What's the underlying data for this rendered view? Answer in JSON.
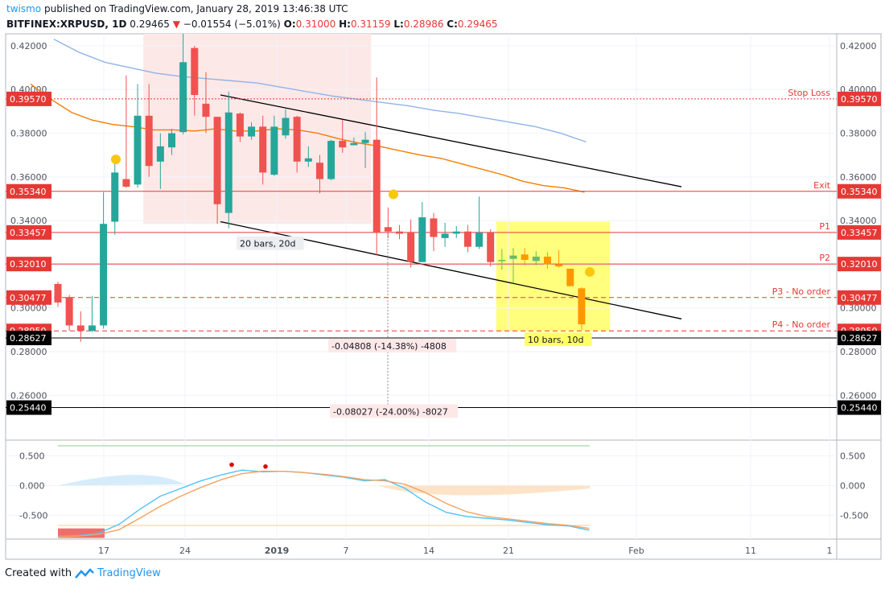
{
  "header": {
    "author": "twismo",
    "published_text": "published on TradingView.com, January 28, 2019 13:46:38 UTC",
    "symbol": "BITFINEX:XRPUSD, 1D",
    "last": "0.29465",
    "change": "−0.01554 (−5.01%)",
    "o_label": "O:",
    "o_value": "0.31000",
    "h_label": "H:",
    "h_value": "0.31159",
    "l_label": "L:",
    "l_value": "0.28986",
    "c_label": "C:",
    "c_value": "0.29465"
  },
  "footer": {
    "created_with": "Created with",
    "brand": "TradingView"
  },
  "colors": {
    "up": "#26a69a",
    "down": "#ef5350",
    "projection_up": "#66bb6a",
    "projection_down": "#ff9800",
    "ma_fast": "#f57c00",
    "ma_slow": "#90b4e6",
    "level_red": "#e53935",
    "level_black": "#000000",
    "box_yellow": "#ffff66",
    "shade_pink": "#fde8e8",
    "marker": "#f9c80e"
  },
  "chart_data": [
    {
      "type": "candlestick",
      "title": "",
      "y_axis": {
        "range": [
          0.2395,
          0.4255
        ],
        "ticks": [
          "0.42000",
          "0.40000",
          "0.38000",
          "0.36000",
          "0.34000",
          "0.32000",
          "0.30000",
          "0.28000",
          "0.26000"
        ]
      },
      "x_axis": {
        "ticks": [
          "17",
          "24",
          "2019",
          "7",
          "14",
          "21",
          "Feb",
          "11",
          "1"
        ]
      },
      "candles": [
        {
          "o": 0.311,
          "h": 0.312,
          "l": 0.3005,
          "c": 0.3025
        },
        {
          "o": 0.305,
          "h": 0.306,
          "l": 0.2895,
          "c": 0.292
        },
        {
          "o": 0.292,
          "h": 0.2985,
          "l": 0.2845,
          "c": 0.2895
        },
        {
          "o": 0.2895,
          "h": 0.3055,
          "l": 0.289,
          "c": 0.292
        },
        {
          "o": 0.292,
          "h": 0.353,
          "l": 0.2905,
          "c": 0.3385
        },
        {
          "o": 0.3395,
          "h": 0.3685,
          "l": 0.3335,
          "c": 0.362
        },
        {
          "o": 0.359,
          "h": 0.4065,
          "l": 0.355,
          "c": 0.3555
        },
        {
          "o": 0.3565,
          "h": 0.4025,
          "l": 0.355,
          "c": 0.388
        },
        {
          "o": 0.388,
          "h": 0.4025,
          "l": 0.36,
          "c": 0.365
        },
        {
          "o": 0.367,
          "h": 0.38,
          "l": 0.3545,
          "c": 0.374
        },
        {
          "o": 0.3735,
          "h": 0.382,
          "l": 0.37,
          "c": 0.38
        },
        {
          "o": 0.3805,
          "h": 0.4255,
          "l": 0.3795,
          "c": 0.4125
        },
        {
          "o": 0.419,
          "h": 0.42,
          "l": 0.388,
          "c": 0.3975
        },
        {
          "o": 0.3935,
          "h": 0.408,
          "l": 0.38,
          "c": 0.3875
        },
        {
          "o": 0.3875,
          "h": 0.3875,
          "l": 0.3385,
          "c": 0.3475
        },
        {
          "o": 0.3435,
          "h": 0.399,
          "l": 0.3365,
          "c": 0.3895
        },
        {
          "o": 0.389,
          "h": 0.3895,
          "l": 0.376,
          "c": 0.3785
        },
        {
          "o": 0.3785,
          "h": 0.385,
          "l": 0.377,
          "c": 0.383
        },
        {
          "o": 0.383,
          "h": 0.388,
          "l": 0.3565,
          "c": 0.362
        },
        {
          "o": 0.361,
          "h": 0.388,
          "l": 0.3605,
          "c": 0.383
        },
        {
          "o": 0.379,
          "h": 0.391,
          "l": 0.3775,
          "c": 0.387
        },
        {
          "o": 0.3875,
          "h": 0.388,
          "l": 0.362,
          "c": 0.367
        },
        {
          "o": 0.367,
          "h": 0.374,
          "l": 0.3645,
          "c": 0.3685
        },
        {
          "o": 0.3665,
          "h": 0.37,
          "l": 0.3525,
          "c": 0.359
        },
        {
          "o": 0.359,
          "h": 0.377,
          "l": 0.3585,
          "c": 0.3765
        },
        {
          "o": 0.3765,
          "h": 0.386,
          "l": 0.371,
          "c": 0.3735
        },
        {
          "o": 0.3745,
          "h": 0.378,
          "l": 0.3745,
          "c": 0.3755
        },
        {
          "o": 0.3755,
          "h": 0.3805,
          "l": 0.364,
          "c": 0.377
        },
        {
          "o": 0.377,
          "h": 0.4055,
          "l": 0.324,
          "c": 0.3345
        },
        {
          "o": 0.337,
          "h": 0.346,
          "l": 0.332,
          "c": 0.335
        },
        {
          "o": 0.335,
          "h": 0.338,
          "l": 0.3315,
          "c": 0.334
        },
        {
          "o": 0.3345,
          "h": 0.3405,
          "l": 0.3185,
          "c": 0.321
        },
        {
          "o": 0.321,
          "h": 0.3485,
          "l": 0.321,
          "c": 0.3415
        },
        {
          "o": 0.341,
          "h": 0.3435,
          "l": 0.326,
          "c": 0.3325
        },
        {
          "o": 0.332,
          "h": 0.339,
          "l": 0.328,
          "c": 0.334
        },
        {
          "o": 0.334,
          "h": 0.3375,
          "l": 0.332,
          "c": 0.335
        },
        {
          "o": 0.335,
          "h": 0.338,
          "l": 0.3255,
          "c": 0.328
        },
        {
          "o": 0.328,
          "h": 0.351,
          "l": 0.327,
          "c": 0.3345
        },
        {
          "o": 0.3345,
          "h": 0.336,
          "l": 0.319,
          "c": 0.321
        }
      ],
      "projection_candles": [
        {
          "o": 0.3215,
          "h": 0.327,
          "l": 0.3175,
          "c": 0.322
        },
        {
          "o": 0.3225,
          "h": 0.3275,
          "l": 0.3115,
          "c": 0.324
        },
        {
          "o": 0.3245,
          "h": 0.3275,
          "l": 0.3195,
          "c": 0.322
        },
        {
          "o": 0.3215,
          "h": 0.326,
          "l": 0.3195,
          "c": 0.3235
        },
        {
          "o": 0.3235,
          "h": 0.3255,
          "l": 0.318,
          "c": 0.32
        },
        {
          "o": 0.32,
          "h": 0.3265,
          "l": 0.3185,
          "c": 0.319
        },
        {
          "o": 0.318,
          "h": 0.318,
          "l": 0.31,
          "c": 0.31
        },
        {
          "o": 0.309,
          "h": 0.3095,
          "l": 0.29,
          "c": 0.2925
        }
      ],
      "series": [
        {
          "kind": "ma_fast",
          "values": [
            0.4025,
            0.3955,
            0.3895,
            0.386,
            0.384,
            0.383,
            0.3815,
            0.3815,
            0.381,
            0.382,
            0.381,
            0.381,
            0.382,
            0.3815,
            0.38,
            0.3775,
            0.3755,
            0.374,
            0.372,
            0.37,
            0.3685,
            0.366,
            0.3635,
            0.361,
            0.358,
            0.356,
            0.355,
            0.353
          ]
        },
        {
          "kind": "ma_slow",
          "values": [
            0.423,
            0.417,
            0.4125,
            0.41,
            0.4075,
            0.406,
            0.405,
            0.404,
            0.403,
            0.401,
            0.399,
            0.397,
            0.3955,
            0.394,
            0.3925,
            0.3905,
            0.389,
            0.387,
            0.385,
            0.383,
            0.38,
            0.376
          ]
        }
      ],
      "levels": [
        {
          "price": "0.39570",
          "label": "Stop Loss",
          "style": "dotted",
          "color": "#e53935"
        },
        {
          "price": "0.35340",
          "label": "Exit",
          "style": "solid",
          "color": "#e53935"
        },
        {
          "price": "0.33457",
          "label": "P1",
          "style": "solid",
          "color": "#e53935"
        },
        {
          "price": "0.32010",
          "label": "P2",
          "style": "solid",
          "color": "#e53935"
        },
        {
          "price": "0.30477",
          "label": "P3 - No order",
          "style": "dashed",
          "color": "#e53935"
        },
        {
          "price": "0.28950",
          "label": "P4 - No order",
          "style": "dashed",
          "color": "#e53935"
        },
        {
          "price": "0.28627",
          "label": "",
          "style": "solid",
          "color": "#000000"
        },
        {
          "price": "0.25440",
          "label": "",
          "style": "solid",
          "color": "#000000"
        }
      ],
      "channel": {
        "upper": [
          [
            0.3975,
            0.3555
          ]
        ],
        "lower": [
          [
            0.3395,
            0.295
          ]
        ]
      },
      "annotations": [
        {
          "text": "20 bars, 20d"
        },
        {
          "text": "10 bars, 10d"
        },
        {
          "text": "-0.04808 (-14.38%) -4808"
        },
        {
          "text": "-0.08027 (-24.00%) -8027"
        }
      ],
      "markers": [
        0.368,
        0.352,
        0.3165
      ]
    },
    {
      "type": "line",
      "title": "",
      "y_axis": {
        "range": [
          -0.9,
          0.75
        ],
        "ticks": [
          "0.500",
          "0.000",
          "-0.500"
        ]
      },
      "series": [
        {
          "kind": "macd",
          "values": [
            -0.85,
            -0.84,
            -0.8,
            -0.65,
            -0.4,
            -0.18,
            -0.05,
            0.08,
            0.18,
            0.26,
            0.23,
            0.24,
            0.22,
            0.18,
            0.14,
            0.08,
            0.1,
            -0.05,
            -0.28,
            -0.45,
            -0.52,
            -0.55,
            -0.58,
            -0.62,
            -0.66,
            -0.68,
            -0.75
          ]
        },
        {
          "kind": "signal",
          "values": [
            -0.86,
            -0.85,
            -0.82,
            -0.74,
            -0.55,
            -0.35,
            -0.18,
            -0.03,
            0.1,
            0.2,
            0.24,
            0.24,
            0.22,
            0.19,
            0.15,
            0.1,
            0.08,
            0.02,
            -0.12,
            -0.3,
            -0.44,
            -0.52,
            -0.56,
            -0.6,
            -0.64,
            -0.67,
            -0.72
          ]
        }
      ]
    }
  ]
}
